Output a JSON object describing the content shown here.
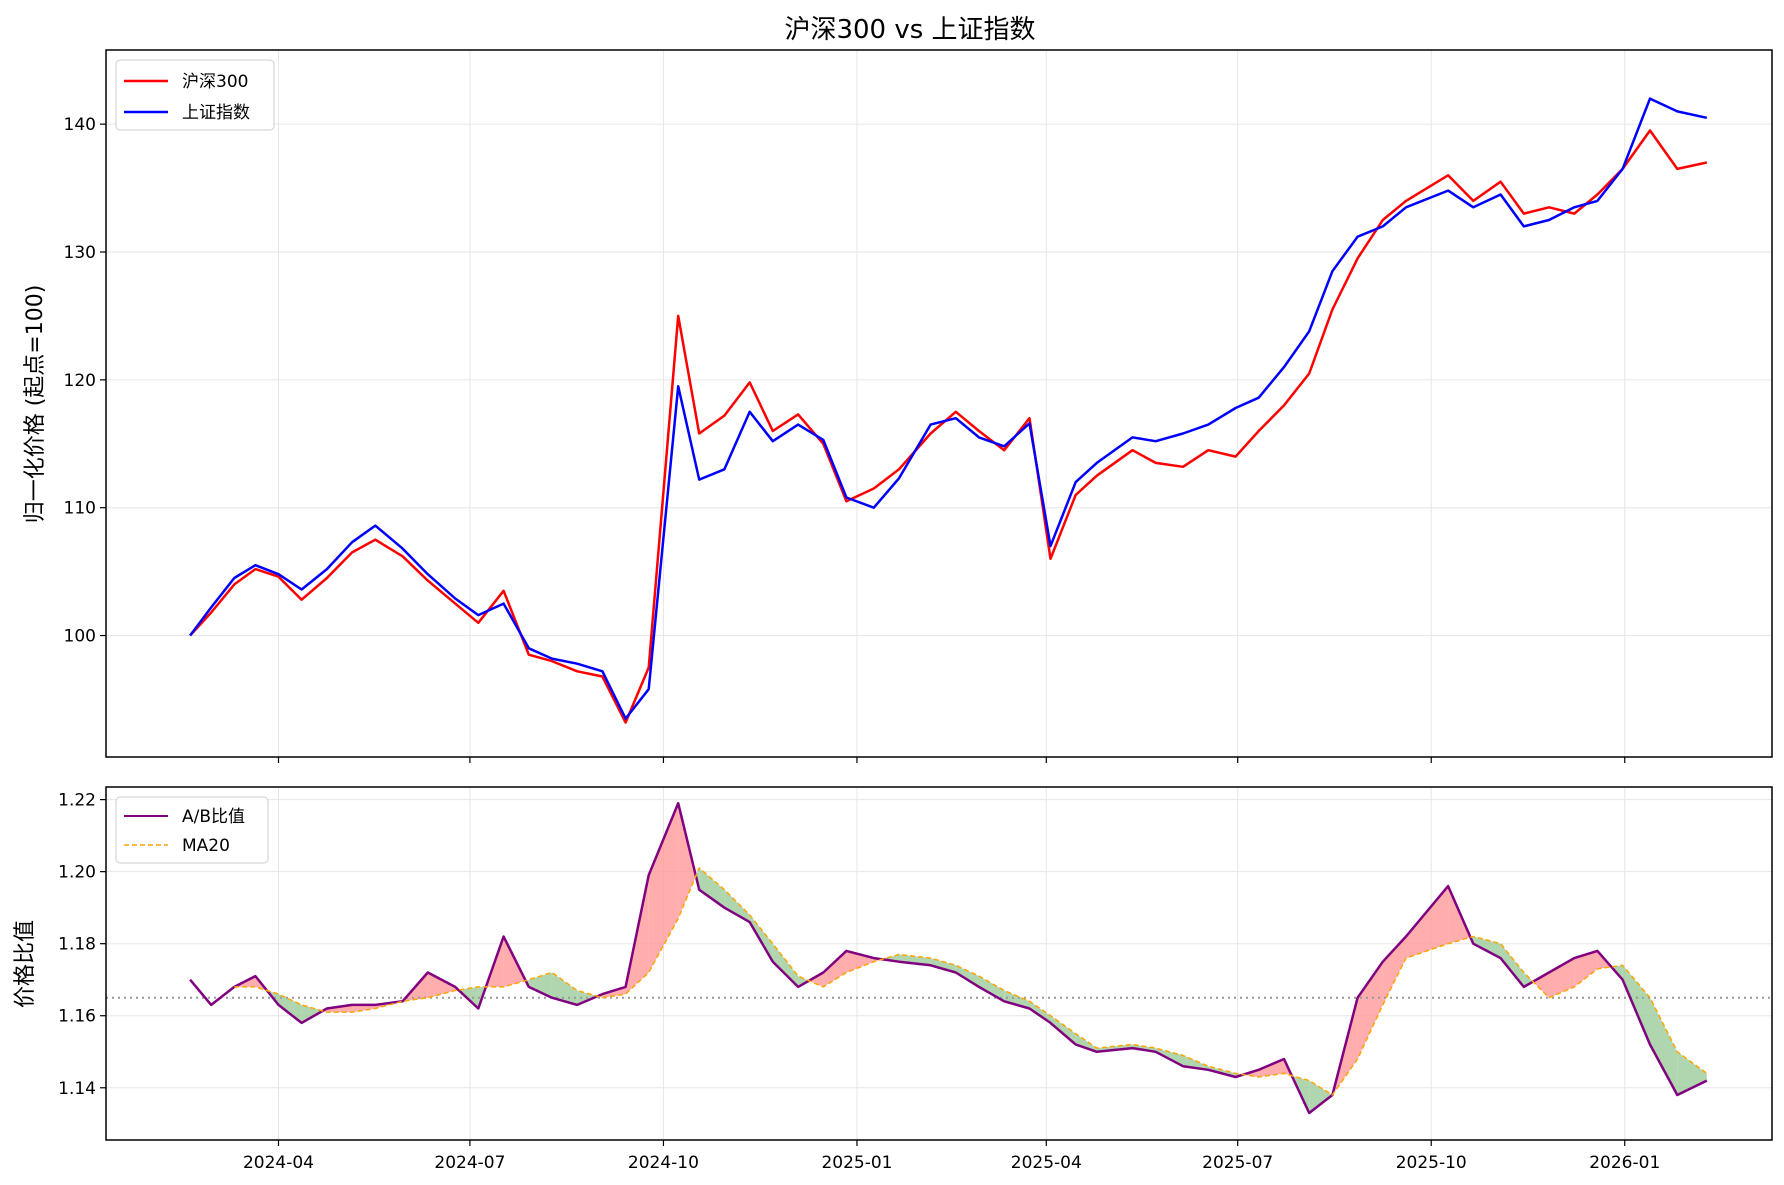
{
  "figure_title": "沪深300 vs 上证指数",
  "chart_data": [
    {
      "type": "line",
      "title": "沪深300 vs 上证指数",
      "ylabel": "归一化价格 (起点=100)",
      "xlabel": "",
      "ylim": [
        90.5,
        145.8
      ],
      "yticks": [
        100,
        110,
        120,
        130,
        140
      ],
      "xticks": [
        "2024-04",
        "2024-07",
        "2024-10",
        "2025-01",
        "2025-04",
        "2025-07",
        "2025-10",
        "2026-01"
      ],
      "grid": true,
      "legend_position": "top-left",
      "x": [
        "2024-02-19",
        "2024-02-29",
        "2024-03-11",
        "2024-03-21",
        "2024-04-01",
        "2024-04-12",
        "2024-04-24",
        "2024-05-06",
        "2024-05-17",
        "2024-05-30",
        "2024-06-11",
        "2024-06-24",
        "2024-07-05",
        "2024-07-17",
        "2024-07-29",
        "2024-08-09",
        "2024-08-21",
        "2024-09-02",
        "2024-09-13",
        "2024-09-24",
        "2024-10-08",
        "2024-10-18",
        "2024-10-30",
        "2024-11-11",
        "2024-11-22",
        "2024-12-04",
        "2024-12-16",
        "2024-12-27",
        "2025-01-09",
        "2025-01-21",
        "2025-02-05",
        "2025-02-17",
        "2025-02-28",
        "2025-03-12",
        "2025-03-24",
        "2025-04-03",
        "2025-04-15",
        "2025-04-25",
        "2025-05-12",
        "2025-05-23",
        "2025-06-05",
        "2025-06-17",
        "2025-06-30",
        "2025-07-11",
        "2025-07-23",
        "2025-08-04",
        "2025-08-15",
        "2025-08-27",
        "2025-09-08",
        "2025-09-19",
        "2025-10-09",
        "2025-10-21",
        "2025-11-03",
        "2025-11-14",
        "2025-11-26",
        "2025-12-08",
        "2025-12-19",
        "2025-12-31",
        "2026-01-13",
        "2026-01-26",
        "2026-02-09"
      ],
      "series": [
        {
          "name": "沪深300",
          "color": "#ff0000",
          "values": [
            100.0,
            101.8,
            104.0,
            105.2,
            104.6,
            102.8,
            104.5,
            106.5,
            107.5,
            106.2,
            104.3,
            102.5,
            101.0,
            103.5,
            98.5,
            98.0,
            97.2,
            96.8,
            93.2,
            97.5,
            125.0,
            115.8,
            117.2,
            119.8,
            116.0,
            117.3,
            115.0,
            110.5,
            111.5,
            113.0,
            115.8,
            117.5,
            116.0,
            114.5,
            117.0,
            106.0,
            111.0,
            112.5,
            114.5,
            113.5,
            113.2,
            114.5,
            114.0,
            116.0,
            118.0,
            120.5,
            125.5,
            129.5,
            132.5,
            134.0,
            136.0,
            134.0,
            135.5,
            133.0,
            133.5,
            133.0,
            134.5,
            136.5,
            139.5,
            136.5,
            137.0
          ]
        },
        {
          "name": "上证指数",
          "color": "#0000ff",
          "values": [
            100.0,
            102.2,
            104.5,
            105.5,
            104.8,
            103.6,
            105.2,
            107.3,
            108.6,
            106.8,
            104.8,
            102.9,
            101.6,
            102.5,
            99.0,
            98.2,
            97.8,
            97.2,
            93.5,
            95.8,
            119.5,
            112.2,
            113.0,
            117.5,
            115.2,
            116.5,
            115.3,
            110.8,
            110.0,
            112.3,
            116.5,
            117.0,
            115.5,
            114.8,
            116.6,
            107.0,
            112.0,
            113.5,
            115.5,
            115.2,
            115.8,
            116.5,
            117.8,
            118.6,
            121.0,
            123.8,
            128.5,
            131.2,
            132.0,
            133.5,
            134.8,
            133.5,
            134.5,
            132.0,
            132.5,
            133.5,
            134.0,
            136.5,
            142.0,
            141.0,
            140.5
          ]
        }
      ]
    },
    {
      "type": "line",
      "title": "",
      "ylabel": "价格比值",
      "xlabel": "",
      "ylim": [
        1.1255,
        1.2235
      ],
      "yticks": [
        1.14,
        1.16,
        1.18,
        1.2,
        1.22
      ],
      "xticks": [
        "2024-04",
        "2024-07",
        "2024-10",
        "2025-01",
        "2025-04",
        "2025-07",
        "2025-10",
        "2026-01"
      ],
      "grid": true,
      "legend_position": "top-left",
      "reference_line": {
        "y": 1.165,
        "color": "#999999",
        "style": "dotted"
      },
      "fill_above_color": "#ff9999",
      "fill_below_color": "#9ccc9c",
      "x": [
        "2024-02-19",
        "2024-02-29",
        "2024-03-11",
        "2024-03-21",
        "2024-04-01",
        "2024-04-12",
        "2024-04-24",
        "2024-05-06",
        "2024-05-17",
        "2024-05-30",
        "2024-06-11",
        "2024-06-24",
        "2024-07-05",
        "2024-07-17",
        "2024-07-29",
        "2024-08-09",
        "2024-08-21",
        "2024-09-02",
        "2024-09-13",
        "2024-09-24",
        "2024-10-08",
        "2024-10-18",
        "2024-10-30",
        "2024-11-11",
        "2024-11-22",
        "2024-12-04",
        "2024-12-16",
        "2024-12-27",
        "2025-01-09",
        "2025-01-21",
        "2025-02-05",
        "2025-02-17",
        "2025-02-28",
        "2025-03-12",
        "2025-03-24",
        "2025-04-03",
        "2025-04-15",
        "2025-04-25",
        "2025-05-12",
        "2025-05-23",
        "2025-06-05",
        "2025-06-17",
        "2025-06-30",
        "2025-07-11",
        "2025-07-23",
        "2025-08-04",
        "2025-08-15",
        "2025-08-27",
        "2025-09-08",
        "2025-09-19",
        "2025-10-09",
        "2025-10-21",
        "2025-11-03",
        "2025-11-14",
        "2025-11-26",
        "2025-12-08",
        "2025-12-19",
        "2025-12-31",
        "2026-01-13",
        "2026-01-26",
        "2026-02-09"
      ],
      "series": [
        {
          "name": "A/B比值",
          "color": "#800080",
          "values": [
            1.17,
            1.163,
            1.168,
            1.171,
            1.163,
            1.158,
            1.162,
            1.163,
            1.163,
            1.164,
            1.172,
            1.168,
            1.162,
            1.182,
            1.168,
            1.165,
            1.163,
            1.166,
            1.168,
            1.199,
            1.219,
            1.195,
            1.19,
            1.186,
            1.175,
            1.168,
            1.172,
            1.178,
            1.176,
            1.175,
            1.174,
            1.172,
            1.168,
            1.164,
            1.162,
            1.158,
            1.152,
            1.15,
            1.151,
            1.15,
            1.146,
            1.145,
            1.143,
            1.145,
            1.148,
            1.133,
            1.138,
            1.165,
            1.175,
            1.182,
            1.196,
            1.18,
            1.176,
            1.168,
            1.172,
            1.176,
            1.178,
            1.17,
            1.152,
            1.138,
            1.142
          ]
        },
        {
          "name": "MA20",
          "color": "#ffa500",
          "values": [
            null,
            null,
            1.168,
            1.168,
            1.166,
            1.163,
            1.161,
            1.161,
            1.162,
            1.164,
            1.165,
            1.167,
            1.168,
            1.168,
            1.17,
            1.172,
            1.167,
            1.165,
            1.166,
            1.172,
            1.187,
            1.201,
            1.195,
            1.188,
            1.18,
            1.171,
            1.168,
            1.172,
            1.175,
            1.177,
            1.176,
            1.174,
            1.171,
            1.167,
            1.164,
            1.16,
            1.155,
            1.151,
            1.152,
            1.151,
            1.149,
            1.146,
            1.144,
            1.143,
            1.144,
            1.142,
            1.138,
            1.148,
            1.163,
            1.176,
            1.18,
            1.182,
            1.18,
            1.172,
            1.165,
            1.168,
            1.173,
            1.174,
            1.165,
            1.15,
            1.144
          ]
        }
      ]
    }
  ]
}
